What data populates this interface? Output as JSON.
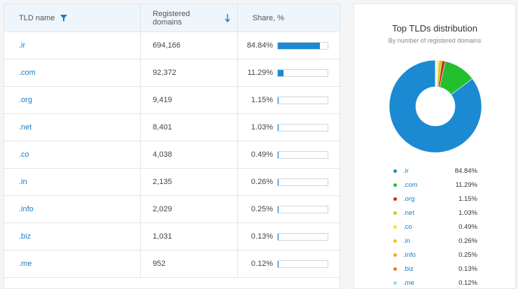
{
  "table": {
    "headers": {
      "tld": "TLD name",
      "registered": "Registered domains",
      "share": "Share, %"
    },
    "rows": [
      {
        "tld": ".ir",
        "registered": "694,166",
        "share_text": "84.84%",
        "share": 84.84
      },
      {
        "tld": ".com",
        "registered": "92,372",
        "share_text": "11.29%",
        "share": 11.29
      },
      {
        "tld": ".org",
        "registered": "9,419",
        "share_text": "1.15%",
        "share": 1.15
      },
      {
        "tld": ".net",
        "registered": "8,401",
        "share_text": "1.03%",
        "share": 1.03
      },
      {
        "tld": ".co",
        "registered": "4,038",
        "share_text": "0.49%",
        "share": 0.49
      },
      {
        "tld": ".in",
        "registered": "2,135",
        "share_text": "0.26%",
        "share": 0.26
      },
      {
        "tld": ".info",
        "registered": "2,029",
        "share_text": "0.25%",
        "share": 0.25
      },
      {
        "tld": ".biz",
        "registered": "1,031",
        "share_text": "0.13%",
        "share": 0.13
      },
      {
        "tld": ".me",
        "registered": "952",
        "share_text": "0.12%",
        "share": 0.12
      }
    ],
    "bar_color": "#1b8ad3"
  },
  "chart_data": {
    "type": "pie",
    "title": "Top TLDs distribution",
    "subtitle": "By number of registered domains",
    "legend_position": "bottom",
    "series": [
      {
        "name": ".ir",
        "value": 84.84,
        "label": "84.84%",
        "color": "#1b8ad3"
      },
      {
        "name": ".com",
        "value": 11.29,
        "label": "11.29%",
        "color": "#22c02e"
      },
      {
        "name": ".org",
        "value": 1.15,
        "label": "1.15%",
        "color": "#e0211d"
      },
      {
        "name": ".net",
        "value": 1.03,
        "label": "1.03%",
        "color": "#b5d41a"
      },
      {
        "name": ".co",
        "value": 0.49,
        "label": "0.49%",
        "color": "#f6e61e"
      },
      {
        "name": ".in",
        "value": 0.26,
        "label": "0.26%",
        "color": "#f0c419"
      },
      {
        "name": ".info",
        "value": 0.25,
        "label": "0.25%",
        "color": "#f5a623"
      },
      {
        "name": ".biz",
        "value": 0.13,
        "label": "0.13%",
        "color": "#e8791c"
      },
      {
        "name": ".me",
        "value": 0.12,
        "label": "0.12%",
        "color": "#8fdcf0"
      }
    ]
  }
}
